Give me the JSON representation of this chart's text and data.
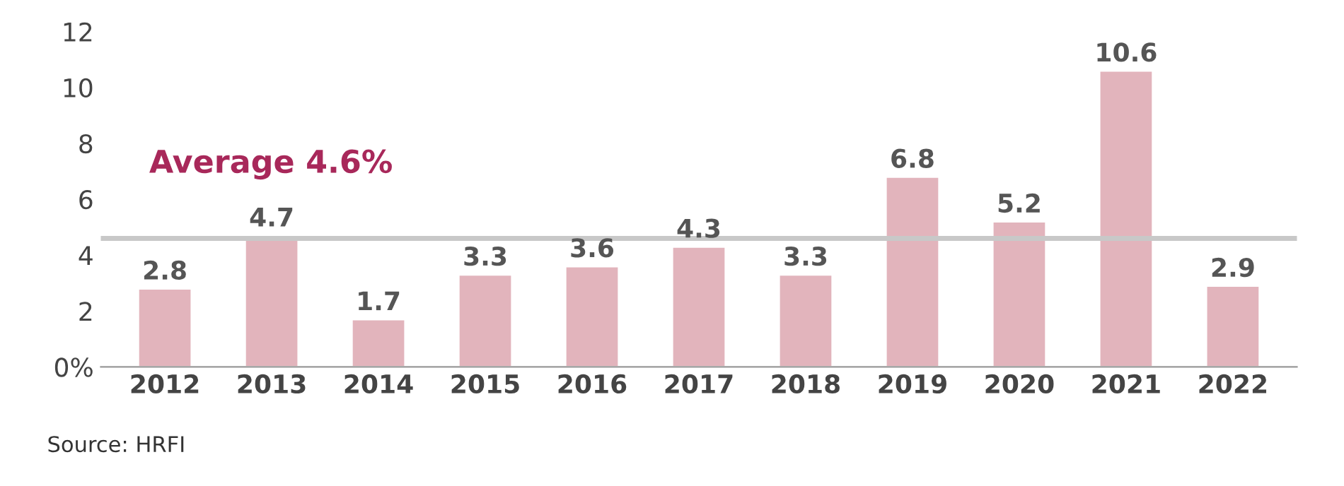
{
  "chart_data": {
    "type": "bar",
    "categories": [
      "2012",
      "2013",
      "2014",
      "2015",
      "2016",
      "2017",
      "2018",
      "2019",
      "2020",
      "2021",
      "2022"
    ],
    "values": [
      2.8,
      4.7,
      1.7,
      3.3,
      3.6,
      4.3,
      3.3,
      6.8,
      5.2,
      10.6,
      2.9
    ],
    "color": "#e2b4bc",
    "ylim": [
      0,
      12
    ],
    "yticks": [
      {
        "value": 0,
        "label": "0%"
      },
      2,
      4,
      6,
      8,
      10,
      12
    ],
    "data_labels": true,
    "grid": false,
    "legend": false,
    "ref_lines": [
      {
        "axis": "y",
        "value": 4.6,
        "label": "Average 4.6%",
        "color": "#c8c8c8"
      }
    ],
    "annotations": [
      "Source: HRFI"
    ]
  }
}
